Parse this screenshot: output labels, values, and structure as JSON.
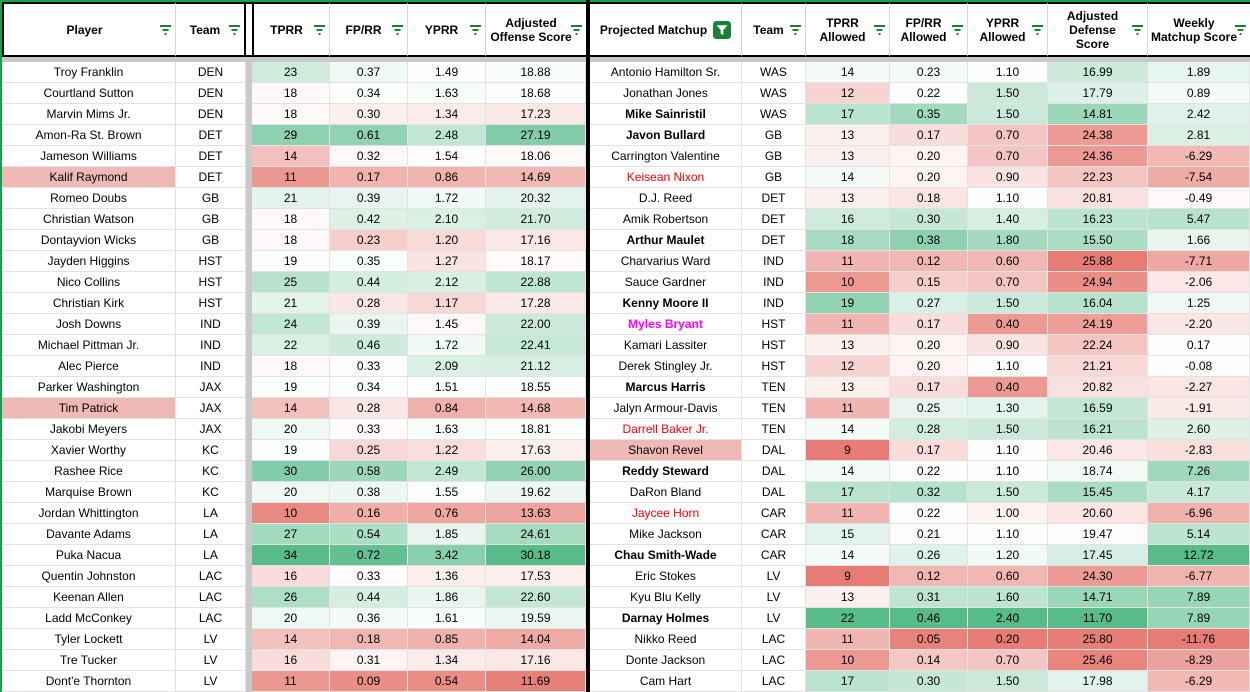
{
  "colors": {
    "scale_green": "#57bb8a",
    "scale_red": "#e67c73",
    "range_border_green": "#15a052",
    "filter_icon_green": "#188038",
    "active_filter_badge": "#188038",
    "header_border": "#000000",
    "gridline": "#e2e2e2",
    "hidden_band_gray": "#c9c9c9",
    "table_divider": "#000000",
    "highlight_name_pink": "#efb9b6",
    "red_name_text": "#ff0000",
    "magenta_name_text": "#ff00ff"
  },
  "offense_table": {
    "headers": [
      "Player",
      "Team",
      "TPRR",
      "FP/RR",
      "YPRR",
      "Adjusted Offense Score"
    ],
    "color_scales": [
      null,
      null,
      {
        "min": 9,
        "mid": 18.5,
        "max": 34
      },
      {
        "min": 0.05,
        "mid": 0.335,
        "max": 0.75
      },
      {
        "min": 0.4,
        "mid": 1.5,
        "max": 4.2
      },
      {
        "min": 11.5,
        "mid": 18.4,
        "max": 30.2
      }
    ],
    "rows": [
      {
        "c": [
          "Troy Franklin",
          "DEN",
          "23",
          "0.37",
          "1.49",
          "18.88"
        ],
        "style": "normal"
      },
      {
        "c": [
          "Courtland Sutton",
          "DEN",
          "18",
          "0.34",
          "1.63",
          "18.68"
        ],
        "style": "normal"
      },
      {
        "c": [
          "Marvin Mims Jr.",
          "DEN",
          "18",
          "0.30",
          "1.34",
          "17.23"
        ],
        "style": "normal"
      },
      {
        "c": [
          "Amon-Ra St. Brown",
          "DET",
          "29",
          "0.61",
          "2.48",
          "27.19"
        ],
        "style": "normal"
      },
      {
        "c": [
          "Jameson Williams",
          "DET",
          "14",
          "0.32",
          "1.54",
          "18.06"
        ],
        "style": "normal"
      },
      {
        "c": [
          "Kalif Raymond",
          "DET",
          "11",
          "0.17",
          "0.86",
          "14.69"
        ],
        "style": "highlight"
      },
      {
        "c": [
          "Romeo Doubs",
          "GB",
          "21",
          "0.39",
          "1.72",
          "20.32"
        ],
        "style": "normal"
      },
      {
        "c": [
          "Christian Watson",
          "GB",
          "18",
          "0.42",
          "2.10",
          "21.70"
        ],
        "style": "normal"
      },
      {
        "c": [
          "Dontayvion Wicks",
          "GB",
          "18",
          "0.23",
          "1.20",
          "17.16"
        ],
        "style": "normal"
      },
      {
        "c": [
          "Jayden Higgins",
          "HST",
          "19",
          "0.35",
          "1.27",
          "18.17"
        ],
        "style": "normal"
      },
      {
        "c": [
          "Nico Collins",
          "HST",
          "25",
          "0.44",
          "2.12",
          "22.88"
        ],
        "style": "normal"
      },
      {
        "c": [
          "Christian Kirk",
          "HST",
          "21",
          "0.28",
          "1.17",
          "17.28"
        ],
        "style": "normal"
      },
      {
        "c": [
          "Josh Downs",
          "IND",
          "24",
          "0.39",
          "1.45",
          "22.00"
        ],
        "style": "normal"
      },
      {
        "c": [
          "Michael Pittman Jr.",
          "IND",
          "22",
          "0.46",
          "1.72",
          "22.41"
        ],
        "style": "normal"
      },
      {
        "c": [
          "Alec Pierce",
          "IND",
          "18",
          "0.33",
          "2.09",
          "21.12"
        ],
        "style": "normal"
      },
      {
        "c": [
          "Parker Washington",
          "JAX",
          "19",
          "0.34",
          "1.51",
          "18.55"
        ],
        "style": "normal"
      },
      {
        "c": [
          "Tim Patrick",
          "JAX",
          "14",
          "0.28",
          "0.84",
          "14.68"
        ],
        "style": "highlight"
      },
      {
        "c": [
          "Jakobi Meyers",
          "JAX",
          "20",
          "0.33",
          "1.63",
          "18.81"
        ],
        "style": "normal"
      },
      {
        "c": [
          "Xavier Worthy",
          "KC",
          "19",
          "0.25",
          "1.22",
          "17.63"
        ],
        "style": "normal"
      },
      {
        "c": [
          "Rashee Rice",
          "KC",
          "30",
          "0.58",
          "2.49",
          "26.00"
        ],
        "style": "normal"
      },
      {
        "c": [
          "Marquise Brown",
          "KC",
          "20",
          "0.38",
          "1.55",
          "19.62"
        ],
        "style": "normal"
      },
      {
        "c": [
          "Jordan Whittington",
          "LA",
          "10",
          "0.16",
          "0.76",
          "13.63"
        ],
        "style": "normal"
      },
      {
        "c": [
          "Davante Adams",
          "LA",
          "27",
          "0.54",
          "1.85",
          "24.61"
        ],
        "style": "normal"
      },
      {
        "c": [
          "Puka Nacua",
          "LA",
          "34",
          "0.72",
          "3.42",
          "30.18"
        ],
        "style": "normal"
      },
      {
        "c": [
          "Quentin Johnston",
          "LAC",
          "16",
          "0.33",
          "1.36",
          "17.53"
        ],
        "style": "normal"
      },
      {
        "c": [
          "Keenan Allen",
          "LAC",
          "26",
          "0.44",
          "1.86",
          "22.60"
        ],
        "style": "normal"
      },
      {
        "c": [
          "Ladd McConkey",
          "LAC",
          "20",
          "0.36",
          "1.61",
          "19.59"
        ],
        "style": "normal"
      },
      {
        "c": [
          "Tyler Lockett",
          "LV",
          "14",
          "0.18",
          "0.85",
          "14.04"
        ],
        "style": "normal"
      },
      {
        "c": [
          "Tre Tucker",
          "LV",
          "16",
          "0.31",
          "1.34",
          "17.16"
        ],
        "style": "normal"
      },
      {
        "c": [
          "Dont'e Thornton",
          "LV",
          "11",
          "0.09",
          "0.54",
          "11.69"
        ],
        "style": "normal"
      }
    ]
  },
  "defense_table": {
    "headers": [
      "Projected Matchup",
      "Team",
      "TPRR Allowed",
      "FP/RR Allowed",
      "YPRR Allowed",
      "Adjusted Defense Score",
      "Weekly Matchup Score"
    ],
    "active_filter_column": "Projected Matchup",
    "color_scales": [
      null,
      null,
      {
        "min": 9,
        "mid": 13.5,
        "max": 22
      },
      {
        "min": 0.04,
        "mid": 0.215,
        "max": 0.46
      },
      {
        "min": 0.2,
        "mid": 1.08,
        "max": 2.4
      },
      {
        "min": 11.7,
        "mid": 19.3,
        "max": 25.9,
        "reverse": true
      },
      {
        "min": -11.8,
        "mid": 0,
        "max": 12.75
      }
    ],
    "rows": [
      {
        "c": [
          "Antonio Hamilton Sr.",
          "WAS",
          "14",
          "0.23",
          "1.10",
          "16.99",
          "1.89"
        ],
        "style": "normal"
      },
      {
        "c": [
          "Jonathan Jones",
          "WAS",
          "12",
          "0.22",
          "1.50",
          "17.79",
          "0.89"
        ],
        "style": "normal"
      },
      {
        "c": [
          "Mike Sainristil",
          "WAS",
          "17",
          "0.35",
          "1.50",
          "14.81",
          "2.42"
        ],
        "style": "bold"
      },
      {
        "c": [
          "Javon Bullard",
          "GB",
          "13",
          "0.17",
          "0.70",
          "24.38",
          "2.81"
        ],
        "style": "bold"
      },
      {
        "c": [
          "Carrington Valentine",
          "GB",
          "13",
          "0.20",
          "0.70",
          "24.36",
          "-6.29"
        ],
        "style": "normal"
      },
      {
        "c": [
          "Keisean Nixon",
          "GB",
          "14",
          "0.20",
          "0.90",
          "22.23",
          "-7.54"
        ],
        "style": "red"
      },
      {
        "c": [
          "D.J. Reed",
          "DET",
          "13",
          "0.18",
          "1.10",
          "20.81",
          "-0.49"
        ],
        "style": "normal"
      },
      {
        "c": [
          "Amik Robertson",
          "DET",
          "16",
          "0.30",
          "1.40",
          "16.23",
          "5.47"
        ],
        "style": "normal"
      },
      {
        "c": [
          "Arthur Maulet",
          "DET",
          "18",
          "0.38",
          "1.80",
          "15.50",
          "1.66"
        ],
        "style": "bold"
      },
      {
        "c": [
          "Charvarius Ward",
          "IND",
          "11",
          "0.12",
          "0.60",
          "25.88",
          "-7.71"
        ],
        "style": "normal"
      },
      {
        "c": [
          "Sauce Gardner",
          "IND",
          "10",
          "0.15",
          "0.70",
          "24.94",
          "-2.06"
        ],
        "style": "normal"
      },
      {
        "c": [
          "Kenny Moore II",
          "IND",
          "19",
          "0.27",
          "1.50",
          "16.04",
          "1.25"
        ],
        "style": "bold"
      },
      {
        "c": [
          "Myles Bryant",
          "HST",
          "11",
          "0.17",
          "0.40",
          "24.19",
          "-2.20"
        ],
        "style": "magenta"
      },
      {
        "c": [
          "Kamari Lassiter",
          "HST",
          "13",
          "0.20",
          "0.90",
          "22.24",
          "0.17"
        ],
        "style": "normal"
      },
      {
        "c": [
          "Derek Stingley Jr.",
          "HST",
          "12",
          "0.20",
          "1.10",
          "21.21",
          "-0.08"
        ],
        "style": "normal"
      },
      {
        "c": [
          "Marcus Harris",
          "TEN",
          "13",
          "0.17",
          "0.40",
          "20.82",
          "-2.27"
        ],
        "style": "bold"
      },
      {
        "c": [
          "Jalyn Armour-Davis",
          "TEN",
          "11",
          "0.25",
          "1.30",
          "16.59",
          "-1.91"
        ],
        "style": "normal"
      },
      {
        "c": [
          "Darrell Baker Jr.",
          "TEN",
          "14",
          "0.28",
          "1.50",
          "16.21",
          "2.60"
        ],
        "style": "red"
      },
      {
        "c": [
          "Shavon Revel",
          "DAL",
          "9",
          "0.17",
          "1.10",
          "20.46",
          "-2.83"
        ],
        "style": "highlight"
      },
      {
        "c": [
          "Reddy Steward",
          "DAL",
          "14",
          "0.22",
          "1.10",
          "18.74",
          "7.26"
        ],
        "style": "bold"
      },
      {
        "c": [
          "DaRon Bland",
          "DAL",
          "17",
          "0.32",
          "1.50",
          "15.45",
          "4.17"
        ],
        "style": "normal"
      },
      {
        "c": [
          "Jaycee Horn",
          "CAR",
          "11",
          "0.22",
          "1.00",
          "20.60",
          "-6.96"
        ],
        "style": "red"
      },
      {
        "c": [
          "Mike Jackson",
          "CAR",
          "15",
          "0.21",
          "1.10",
          "19.47",
          "5.14"
        ],
        "style": "normal"
      },
      {
        "c": [
          "Chau Smith-Wade",
          "CAR",
          "14",
          "0.26",
          "1.20",
          "17.45",
          "12.72"
        ],
        "style": "bold"
      },
      {
        "c": [
          "Eric Stokes",
          "LV",
          "9",
          "0.12",
          "0.60",
          "24.30",
          "-6.77"
        ],
        "style": "normal"
      },
      {
        "c": [
          "Kyu Blu Kelly",
          "LV",
          "13",
          "0.31",
          "1.60",
          "14.71",
          "7.89"
        ],
        "style": "normal"
      },
      {
        "c": [
          "Darnay Holmes",
          "LV",
          "22",
          "0.46",
          "2.40",
          "11.70",
          "7.89"
        ],
        "style": "bold"
      },
      {
        "c": [
          "Nikko Reed",
          "LAC",
          "11",
          "0.05",
          "0.20",
          "25.80",
          "-11.76"
        ],
        "style": "normal"
      },
      {
        "c": [
          "Donte Jackson",
          "LAC",
          "10",
          "0.14",
          "0.70",
          "25.46",
          "-8.29"
        ],
        "style": "normal"
      },
      {
        "c": [
          "Cam Hart",
          "LAC",
          "17",
          "0.30",
          "1.50",
          "17.98",
          "-6.29"
        ],
        "style": "normal"
      }
    ]
  }
}
